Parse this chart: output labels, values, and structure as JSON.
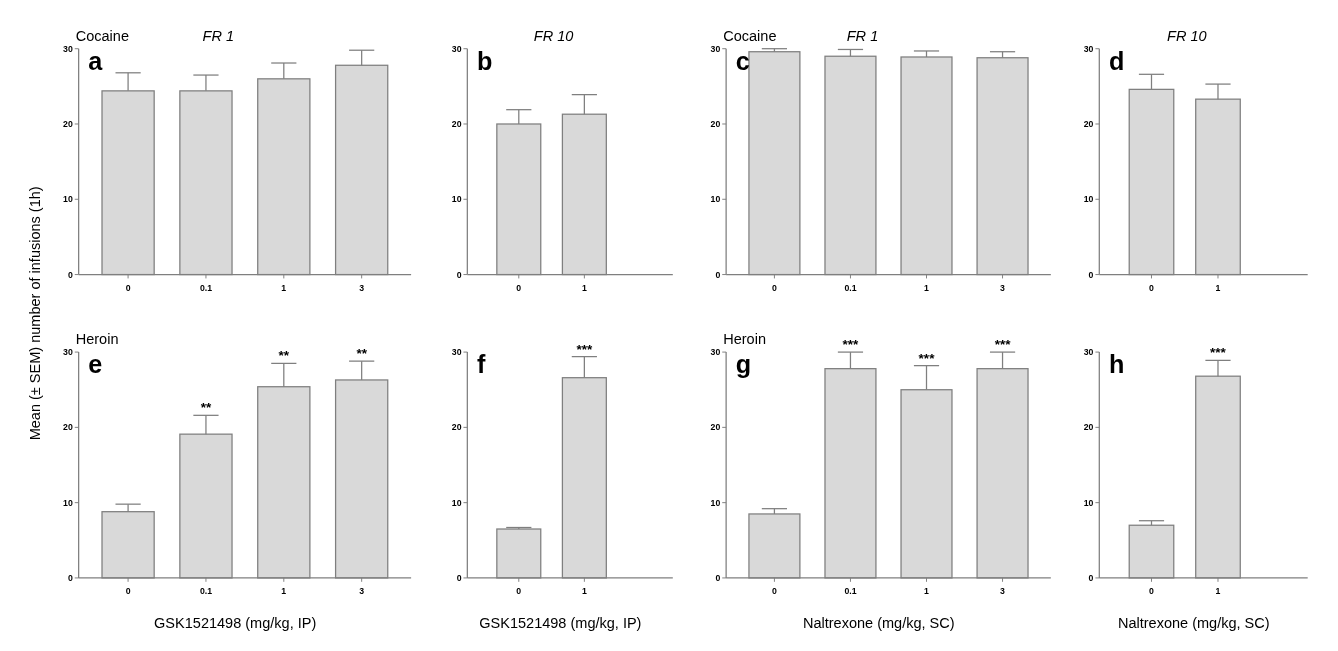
{
  "chart_data": [
    {
      "type": "bar",
      "title": "FR 1",
      "ylabel": "Mean (± SEM) number of infusions (1h)",
      "categories": [
        "0",
        "0.1",
        "1",
        "3"
      ],
      "values": [
        24.4,
        24.4,
        26.0,
        27.8
      ],
      "errors": [
        [
          24.4,
          26.8
        ],
        [
          24.4,
          26.5
        ],
        [
          26.0,
          28.1
        ],
        [
          27.8,
          29.8
        ]
      ],
      "color": "#d9d9d9",
      "ylim": [
        0,
        30
      ],
      "yticks": [
        0,
        10,
        20,
        30
      ],
      "grid": false,
      "annotations": [
        "a",
        "Cocaine"
      ]
    },
    {
      "type": "bar",
      "title": "FR 10",
      "categories": [
        "0",
        "1"
      ],
      "values": [
        20.0,
        21.3
      ],
      "errors": [
        [
          20.0,
          21.9
        ],
        [
          21.3,
          23.9
        ]
      ],
      "color": "#d9d9d9",
      "ylim": [
        0,
        30
      ],
      "yticks": [
        0,
        10,
        20,
        30
      ],
      "grid": false,
      "annotations": [
        "b"
      ]
    },
    {
      "type": "bar",
      "title": "FR 1",
      "categories": [
        "0",
        "0.1",
        "1",
        "3"
      ],
      "values": [
        29.6,
        29.0,
        28.9,
        28.8
      ],
      "errors": [
        [
          29.6,
          30.0
        ],
        [
          29.0,
          29.9
        ],
        [
          28.9,
          29.7
        ],
        [
          28.8,
          29.6
        ]
      ],
      "color": "#d9d9d9",
      "ylim": [
        0,
        30
      ],
      "yticks": [
        0,
        10,
        20,
        30
      ],
      "grid": false,
      "annotations": [
        "c",
        "Cocaine"
      ]
    },
    {
      "type": "bar",
      "title": "FR 10",
      "categories": [
        "0",
        "1"
      ],
      "values": [
        24.6,
        23.3
      ],
      "errors": [
        [
          24.6,
          26.6
        ],
        [
          23.3,
          25.3
        ]
      ],
      "color": "#d9d9d9",
      "ylim": [
        0,
        30
      ],
      "yticks": [
        0,
        10,
        20,
        30
      ],
      "grid": false,
      "annotations": [
        "d"
      ]
    },
    {
      "type": "bar",
      "xlabel": "GSK1521498 (mg/kg, IP)",
      "categories": [
        "0",
        "0.1",
        "1",
        "3"
      ],
      "values": [
        8.8,
        19.1,
        25.4,
        26.3
      ],
      "errors": [
        [
          8.8,
          9.8
        ],
        [
          19.1,
          21.6
        ],
        [
          25.4,
          28.5
        ],
        [
          26.3,
          28.8
        ]
      ],
      "color": "#d9d9d9",
      "ylim": [
        0,
        30
      ],
      "yticks": [
        0,
        10,
        20,
        30
      ],
      "grid": false,
      "annotations": [
        "e",
        "Heroin",
        {
          "text": "**",
          "x": "0.1",
          "y": 21.6
        },
        {
          "text": "**",
          "x": "1",
          "y": 28.5
        },
        {
          "text": "**",
          "x": "3",
          "y": 28.8
        }
      ]
    },
    {
      "type": "bar",
      "xlabel": "GSK1521498 (mg/kg, IP)",
      "categories": [
        "0",
        "1"
      ],
      "values": [
        6.5,
        26.6
      ],
      "errors": [
        [
          6.5,
          6.7
        ],
        [
          26.6,
          29.4
        ]
      ],
      "color": "#d9d9d9",
      "ylim": [
        0,
        30
      ],
      "yticks": [
        0,
        10,
        20,
        30
      ],
      "grid": false,
      "annotations": [
        "f",
        {
          "text": "***",
          "x": "1",
          "y": 29.4
        }
      ]
    },
    {
      "type": "bar",
      "xlabel": "Naltrexone (mg/kg, SC)",
      "categories": [
        "0",
        "0.1",
        "1",
        "3"
      ],
      "values": [
        8.5,
        27.8,
        25.0,
        27.8
      ],
      "errors": [
        [
          8.5,
          9.2
        ],
        [
          27.8,
          30.0
        ],
        [
          25.0,
          28.2
        ],
        [
          27.8,
          30.0
        ]
      ],
      "color": "#d9d9d9",
      "ylim": [
        0,
        30
      ],
      "yticks": [
        0,
        10,
        20,
        30
      ],
      "grid": false,
      "annotations": [
        "g",
        "Heroin",
        {
          "text": "***",
          "x": "0.1",
          "y": 30.0
        },
        {
          "text": "***",
          "x": "1",
          "y": 28.2
        },
        {
          "text": "***",
          "x": "3",
          "y": 30.0
        }
      ]
    },
    {
      "type": "bar",
      "xlabel": "Naltrexone (mg/kg, SC)",
      "categories": [
        "0",
        "1"
      ],
      "values": [
        7.0,
        26.8
      ],
      "errors": [
        [
          7.0,
          7.6
        ],
        [
          26.8,
          28.9
        ]
      ],
      "color": "#d9d9d9",
      "ylim": [
        0,
        30
      ],
      "yticks": [
        0,
        10,
        20,
        30
      ],
      "grid": false,
      "annotations": [
        "h",
        {
          "text": "***",
          "x": "1",
          "y": 28.9
        }
      ]
    }
  ]
}
